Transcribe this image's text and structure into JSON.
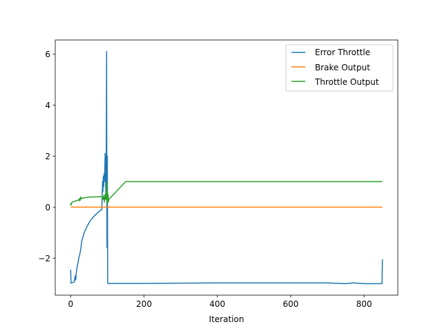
{
  "chart_data": {
    "type": "line",
    "title": "",
    "xlabel": "Iteration",
    "ylabel": "",
    "xlim": [
      -42,
      892
    ],
    "ylim": [
      -3.45,
      6.55
    ],
    "xticks": [
      0,
      200,
      400,
      600,
      800
    ],
    "yticks": [
      -2,
      0,
      2,
      4,
      6
    ],
    "xtick_labels": [
      "0",
      "200",
      "400",
      "600",
      "800"
    ],
    "ytick_labels": [
      "−2",
      "0",
      "2",
      "4",
      "6"
    ],
    "grid": false,
    "legend_position": "top-right",
    "series": [
      {
        "name": "Error Throttle",
        "color": "#1f77b4",
        "x": [
          0,
          1,
          2,
          5,
          10,
          12,
          14,
          15,
          16,
          18,
          20,
          22,
          25,
          28,
          30,
          33,
          36,
          40,
          45,
          50,
          55,
          60,
          65,
          70,
          75,
          80,
          85,
          87,
          88,
          89,
          90,
          91,
          92,
          93,
          94,
          95,
          96,
          97,
          98,
          99,
          100,
          101,
          102,
          103,
          104,
          110,
          150,
          200,
          300,
          400,
          500,
          600,
          700,
          750,
          770,
          800,
          849,
          850
        ],
        "y": [
          -2.45,
          -2.98,
          -2.98,
          -2.96,
          -2.93,
          -2.7,
          -2.85,
          -2.6,
          -2.5,
          -2.3,
          -2.2,
          -2.0,
          -1.85,
          -1.6,
          -1.35,
          -1.2,
          -1.05,
          -0.9,
          -0.75,
          -0.62,
          -0.5,
          -0.42,
          -0.34,
          -0.27,
          -0.2,
          -0.14,
          -0.1,
          1.0,
          0.6,
          1.2,
          0.8,
          1.3,
          1.0,
          1.4,
          2.1,
          1.2,
          0.5,
          2.0,
          6.1,
          -1.6,
          2.0,
          -2.98,
          -2.98,
          -2.99,
          -3.0,
          -2.99,
          -2.99,
          -2.99,
          -2.98,
          -2.97,
          -2.97,
          -2.97,
          -2.97,
          -3.0,
          -2.97,
          -3.0,
          -3.0,
          -2.05
        ]
      },
      {
        "name": "Brake Output",
        "color": "#ff7f0e",
        "x": [
          0,
          850
        ],
        "y": [
          0,
          0
        ]
      },
      {
        "name": "Throttle Output",
        "color": "#2ca02c",
        "x": [
          0,
          1,
          2,
          3,
          5,
          10,
          15,
          20,
          22,
          24,
          25,
          26,
          28,
          30,
          35,
          40,
          50,
          60,
          70,
          80,
          85,
          88,
          90,
          92,
          94,
          96,
          98,
          99,
          100,
          101,
          102,
          103,
          104,
          150,
          850
        ],
        "y": [
          0.05,
          0.15,
          0.12,
          0.18,
          0.2,
          0.22,
          0.25,
          0.27,
          0.3,
          0.25,
          0.35,
          0.27,
          0.4,
          0.33,
          0.36,
          0.37,
          0.39,
          0.4,
          0.4,
          0.41,
          0.4,
          0.3,
          0.45,
          0.2,
          0.5,
          0.3,
          1.0,
          0.1,
          0.6,
          0.28,
          0.5,
          0.2,
          0.3,
          1.0,
          1.0
        ]
      }
    ]
  }
}
